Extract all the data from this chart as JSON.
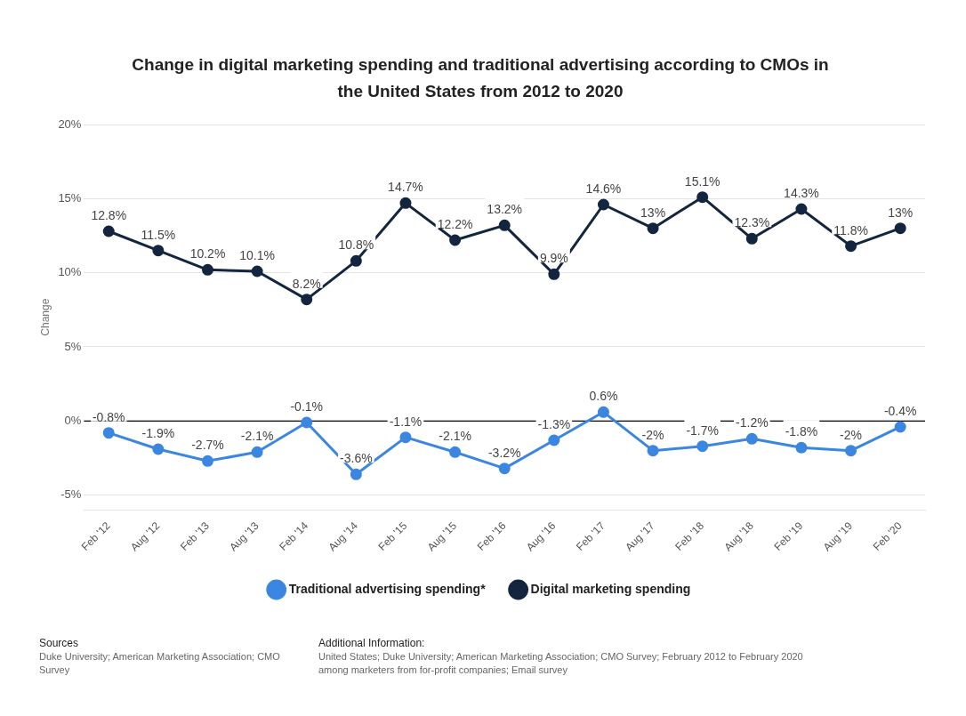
{
  "chart_data": {
    "type": "line",
    "title": "Change in digital marketing spending and traditional advertising according to CMOs in the United States from 2012 to 2020",
    "ylabel": "Change",
    "categories": [
      "Feb '12",
      "Aug '12",
      "Feb '13",
      "Aug '13",
      "Feb '14",
      "Aug '14",
      "Feb '15",
      "Aug '15",
      "Feb '16",
      "Aug '16",
      "Feb '17",
      "Aug '17",
      "Feb '18",
      "Aug '18",
      "Feb '19",
      "Aug '19",
      "Feb '20"
    ],
    "series": [
      {
        "name": "Traditional advertising spending*",
        "color": "#3b86e0",
        "values": [
          -0.8,
          -1.9,
          -2.7,
          -2.1,
          -0.1,
          -3.6,
          -1.1,
          -2.1,
          -3.2,
          -1.3,
          0.6,
          -2,
          -1.7,
          -1.2,
          -1.8,
          -2,
          -0.4
        ],
        "value_labels": [
          "-0.8%",
          "-1.9%",
          "-2.7%",
          "-2.1%",
          "-0.1%",
          "-3.6%",
          "-1.1%",
          "-2.1%",
          "-3.2%",
          "-1.3%",
          "0.6%",
          "-2%",
          "-1.7%",
          "-1.2%",
          "-1.8%",
          "-2%",
          "-0.4%"
        ]
      },
      {
        "name": "Digital marketing spending",
        "color": "#13253f",
        "values": [
          12.8,
          11.5,
          10.2,
          10.1,
          8.2,
          10.8,
          14.7,
          12.2,
          13.2,
          9.9,
          14.6,
          13,
          15.1,
          12.3,
          14.3,
          11.8,
          13
        ],
        "value_labels": [
          "12.8%",
          "11.5%",
          "10.2%",
          "10.1%",
          "8.2%",
          "10.8%",
          "14.7%",
          "12.2%",
          "13.2%",
          "9.9%",
          "14.6%",
          "13%",
          "15.1%",
          "12.3%",
          "14.3%",
          "11.8%",
          "13%"
        ]
      }
    ],
    "ylim": [
      -6,
      20
    ],
    "yticks": [
      {
        "value": -5,
        "label": "-5%"
      },
      {
        "value": 0,
        "label": "0%"
      },
      {
        "value": 5,
        "label": "5%"
      },
      {
        "value": 10,
        "label": "10%"
      },
      {
        "value": 15,
        "label": "15%"
      },
      {
        "value": 20,
        "label": "20%"
      }
    ],
    "grid": "y",
    "legend": "bottom",
    "marker": "circle",
    "line_style": "solid",
    "ref_lines": [
      {
        "axis": "y",
        "value": 0,
        "color": "#000000"
      }
    ],
    "annotations": [
      "Sources",
      "Duke University; American Marketing Association; CMO Survey",
      "Additional Information:",
      "United States; Duke University; American Marketing Association; CMO Survey; February 2012 to February 2020",
      "among marketers from for-profit companies; Email survey"
    ]
  }
}
